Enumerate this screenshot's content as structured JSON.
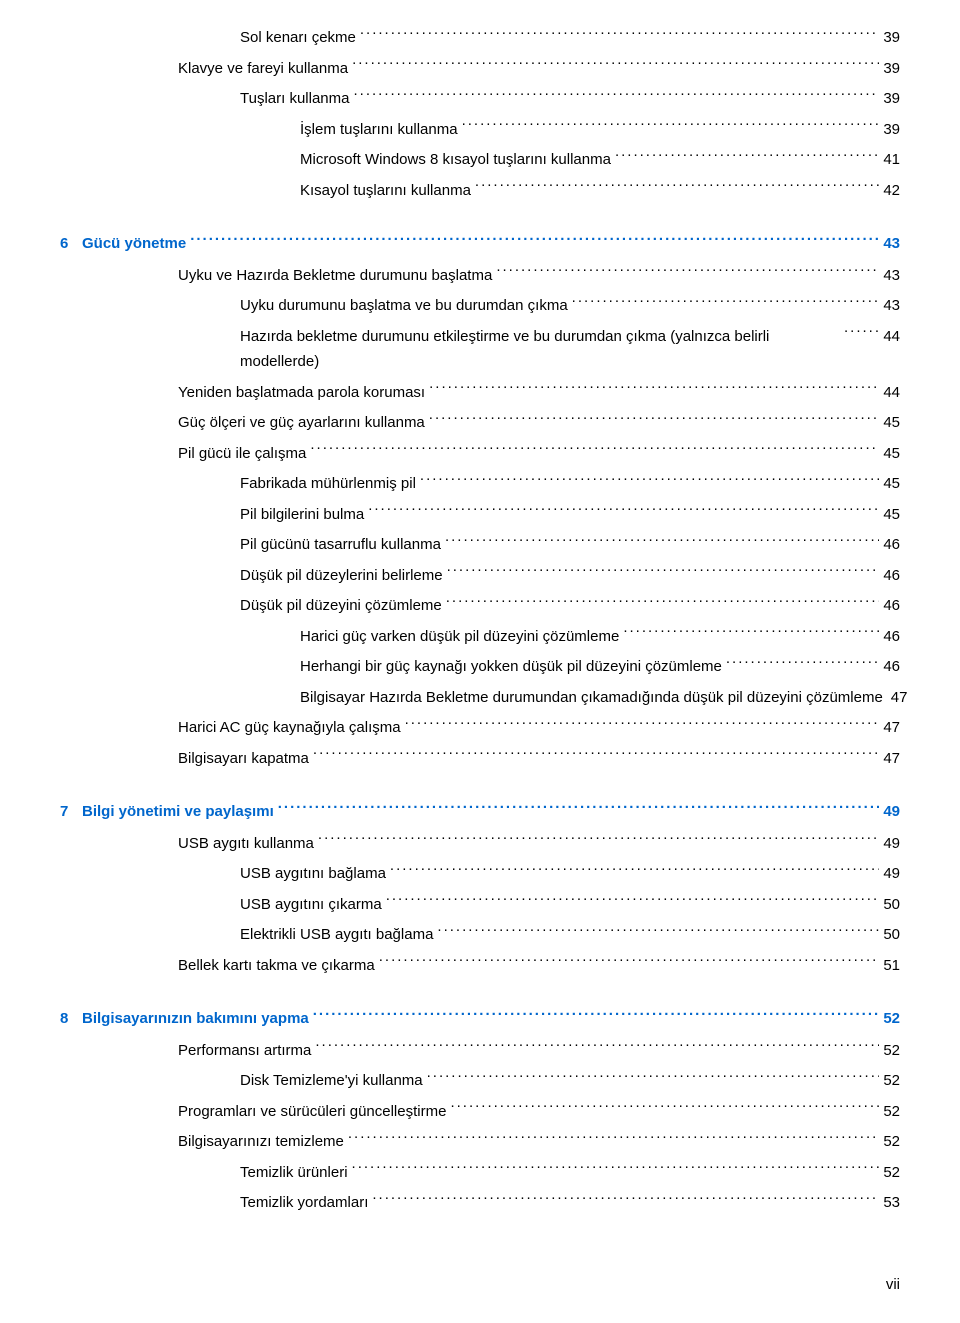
{
  "page_number_roman": "vii",
  "toc": [
    {
      "level": 3,
      "label": "Sol kenarı çekme",
      "page": "39"
    },
    {
      "level": 2,
      "label": "Klavye ve fareyi kullanma",
      "page": "39"
    },
    {
      "level": 3,
      "label": "Tuşları kullanma",
      "page": "39"
    },
    {
      "level": 4,
      "label": "İşlem tuşlarını kullanma",
      "page": "39"
    },
    {
      "level": 4,
      "label": "Microsoft Windows 8 kısayol tuşlarını kullanma",
      "page": "41"
    },
    {
      "level": 4,
      "label": "Kısayol tuşlarını kullanma",
      "page": "42"
    },
    {
      "level": 0,
      "chapter_num": "6",
      "label": "Gücü yönetme",
      "page": "43"
    },
    {
      "level": 2,
      "label": "Uyku ve Hazırda Bekletme durumunu başlatma",
      "page": "43"
    },
    {
      "level": 3,
      "label": "Uyku durumunu başlatma ve bu durumdan çıkma",
      "page": "43"
    },
    {
      "level": 3,
      "label": "Hazırda bekletme durumunu etkileştirme ve bu durumdan çıkma (yalnızca belirli modellerde)",
      "page": "44",
      "multiline": true
    },
    {
      "level": 2,
      "label": "Yeniden başlatmada parola koruması",
      "page": "44"
    },
    {
      "level": 2,
      "label": "Güç ölçeri ve güç ayarlarını kullanma",
      "page": "45"
    },
    {
      "level": 2,
      "label": "Pil gücü ile çalışma",
      "page": "45"
    },
    {
      "level": 3,
      "label": "Fabrikada mühürlenmiş pil",
      "page": "45"
    },
    {
      "level": 3,
      "label": "Pil bilgilerini bulma",
      "page": "45"
    },
    {
      "level": 3,
      "label": "Pil gücünü tasarruflu kullanma",
      "page": "46"
    },
    {
      "level": 3,
      "label": "Düşük pil düzeylerini belirleme",
      "page": "46"
    },
    {
      "level": 3,
      "label": "Düşük pil düzeyini çözümleme",
      "page": "46"
    },
    {
      "level": 4,
      "label": "Harici güç varken düşük pil düzeyini çözümleme",
      "page": "46"
    },
    {
      "level": 4,
      "label": "Herhangi bir güç kaynağı yokken düşük pil düzeyini çözümleme",
      "page": "46"
    },
    {
      "level": 4,
      "label": "Bilgisayar Hazırda Bekletme durumundan çıkamadığında düşük pil düzeyini çözümleme",
      "page": "47",
      "multiline": true
    },
    {
      "level": 2,
      "label": "Harici AC güç kaynağıyla çalışma",
      "page": "47"
    },
    {
      "level": 2,
      "label": "Bilgisayarı kapatma",
      "page": "47"
    },
    {
      "level": 0,
      "chapter_num": "7",
      "label": "Bilgi yönetimi ve paylaşımı",
      "page": "49"
    },
    {
      "level": 2,
      "label": "USB aygıtı kullanma",
      "page": "49"
    },
    {
      "level": 3,
      "label": "USB aygıtını bağlama",
      "page": "49"
    },
    {
      "level": 3,
      "label": "USB aygıtını çıkarma",
      "page": "50"
    },
    {
      "level": 3,
      "label": "Elektrikli USB aygıtı bağlama",
      "page": "50"
    },
    {
      "level": 2,
      "label": "Bellek kartı takma ve çıkarma",
      "page": "51"
    },
    {
      "level": 0,
      "chapter_num": "8",
      "label": "Bilgisayarınızın bakımını yapma",
      "page": "52"
    },
    {
      "level": 2,
      "label": "Performansı artırma",
      "page": "52"
    },
    {
      "level": 3,
      "label": "Disk Temizleme'yi kullanma",
      "page": "52"
    },
    {
      "level": 2,
      "label": "Programları ve sürücüleri güncelleştirme",
      "page": "52"
    },
    {
      "level": 2,
      "label": "Bilgisayarınızı temizleme",
      "page": "52"
    },
    {
      "level": 3,
      "label": "Temizlik ürünleri",
      "page": "52"
    },
    {
      "level": 3,
      "label": "Temizlik yordamları",
      "page": "53"
    }
  ]
}
